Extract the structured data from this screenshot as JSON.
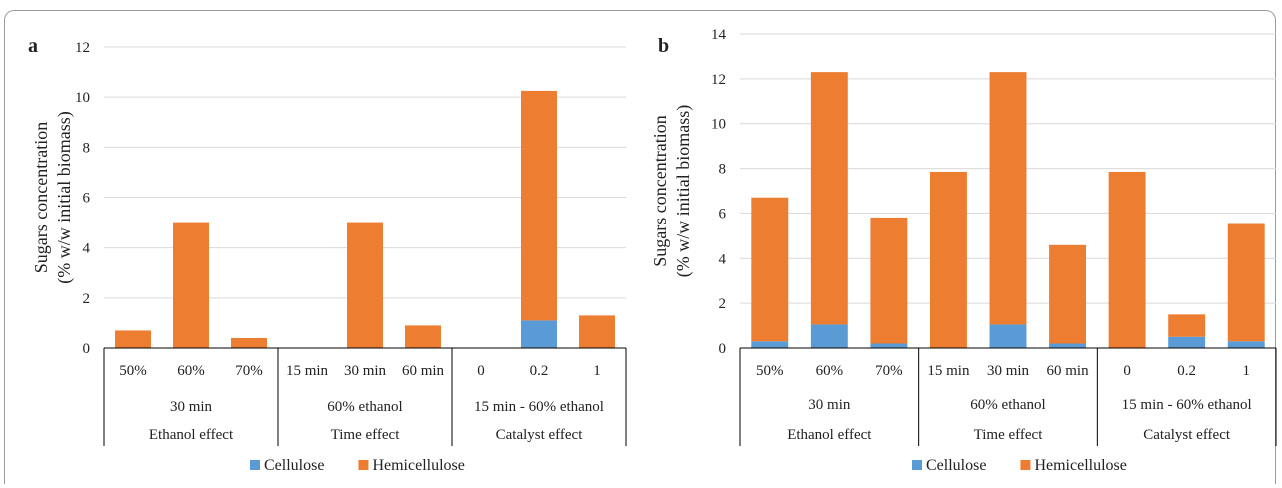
{
  "colors": {
    "cellulose": "#5b9bd5",
    "hemicellulose": "#ed7d31",
    "grid": "#d9d9d9",
    "axis": "#000000"
  },
  "chart_data": [
    {
      "type": "bar",
      "stacked": true,
      "panel": "a",
      "ylabel": [
        "Sugars concentration",
        "(% w/w initial biomass)"
      ],
      "ylim": [
        0,
        12
      ],
      "yticks": [
        0,
        2,
        4,
        6,
        8,
        10,
        12
      ],
      "grid": true,
      "legend_position": "bottom",
      "categories": [
        "50%",
        "60%",
        "70%",
        "15 min",
        "30 min",
        "60 min",
        "0",
        "0.2",
        "1"
      ],
      "groups_level2": [
        {
          "label": "30 min",
          "span": 3
        },
        {
          "label": "60% ethanol",
          "span": 3
        },
        {
          "label": "15 min - 60% ethanol",
          "span": 3
        }
      ],
      "groups_level3": [
        {
          "label": "Ethanol effect",
          "span": 3
        },
        {
          "label": "Time effect",
          "span": 3
        },
        {
          "label": "Catalyst effect",
          "span": 3
        }
      ],
      "series": [
        {
          "name": "Cellulose",
          "values": [
            0,
            0,
            0,
            0,
            0,
            0,
            0,
            1.1,
            0
          ]
        },
        {
          "name": "Hemicellulose",
          "values": [
            0.7,
            5.0,
            0.4,
            0,
            5.0,
            0.9,
            0,
            9.15,
            1.3
          ]
        }
      ]
    },
    {
      "type": "bar",
      "stacked": true,
      "panel": "b",
      "ylabel": [
        "Sugars concentration",
        "(% w/w initial biomass)"
      ],
      "ylim": [
        0,
        14
      ],
      "yticks": [
        0,
        2,
        4,
        6,
        8,
        10,
        12,
        14
      ],
      "grid": true,
      "legend_position": "bottom",
      "categories": [
        "50%",
        "60%",
        "70%",
        "15 min",
        "30 min",
        "60 min",
        "0",
        "0.2",
        "1"
      ],
      "groups_level2": [
        {
          "label": "30 min",
          "span": 3
        },
        {
          "label": "60% ethanol",
          "span": 3
        },
        {
          "label": "15 min - 60% ethanol",
          "span": 3
        }
      ],
      "groups_level3": [
        {
          "label": "Ethanol effect",
          "span": 3
        },
        {
          "label": "Time effect",
          "span": 3
        },
        {
          "label": "Catalyst effect",
          "span": 3
        }
      ],
      "series": [
        {
          "name": "Cellulose",
          "values": [
            0.3,
            1.05,
            0.2,
            0,
            1.05,
            0.2,
            0,
            0.5,
            0.3
          ]
        },
        {
          "name": "Hemicellulose",
          "values": [
            6.4,
            11.25,
            5.6,
            7.85,
            11.25,
            4.4,
            7.85,
            1.0,
            5.25
          ]
        }
      ]
    }
  ]
}
